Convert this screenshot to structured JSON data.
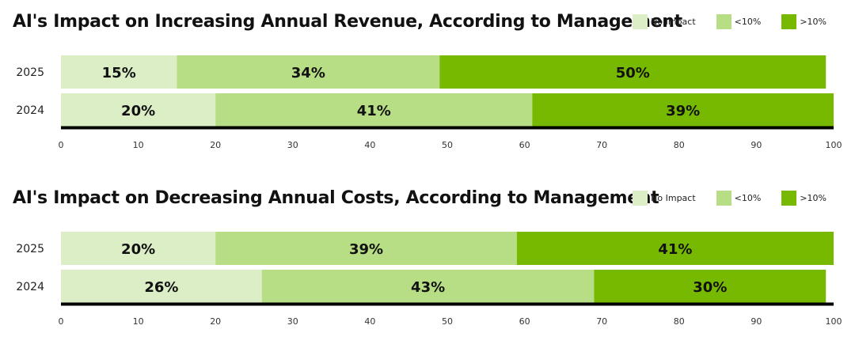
{
  "chart_data": [
    {
      "type": "bar",
      "orientation": "horizontal",
      "stacked": true,
      "title": "AI's Impact on Increasing Annual Revenue, According to Management",
      "categories": [
        "2025",
        "2024"
      ],
      "series": [
        {
          "name": "No Impact",
          "values": [
            15,
            20
          ],
          "labels": [
            "15%",
            "20%"
          ],
          "color": "#dceec6"
        },
        {
          "name": "<10%",
          "values": [
            34,
            41
          ],
          "labels": [
            "34%",
            "41%"
          ],
          "color": "#b7dd85"
        },
        {
          "name": ">10%",
          "values": [
            50,
            39
          ],
          "labels": [
            "50%",
            "39%"
          ],
          "color": "#76b900"
        }
      ],
      "xlim": [
        0,
        100
      ],
      "xticks": [
        "0",
        "10",
        "20",
        "30",
        "40",
        "50",
        "60",
        "70",
        "80",
        "90",
        "100"
      ],
      "legend": "top-right"
    },
    {
      "type": "bar",
      "orientation": "horizontal",
      "stacked": true,
      "title": "AI's Impact on Decreasing Annual Costs, According to Management",
      "categories": [
        "2025",
        "2024"
      ],
      "series": [
        {
          "name": "No Impact",
          "values": [
            20,
            26
          ],
          "labels": [
            "20%",
            "26%"
          ],
          "color": "#dceec6"
        },
        {
          "name": "<10%",
          "values": [
            39,
            43
          ],
          "labels": [
            "39%",
            "43%"
          ],
          "color": "#b7dd85"
        },
        {
          "name": ">10%",
          "values": [
            41,
            30
          ],
          "labels": [
            "41%",
            "30%"
          ],
          "color": "#76b900"
        }
      ],
      "xlim": [
        0,
        100
      ],
      "xticks": [
        "0",
        "10",
        "20",
        "30",
        "40",
        "50",
        "60",
        "70",
        "80",
        "90",
        "100"
      ],
      "legend": "top-right"
    }
  ]
}
